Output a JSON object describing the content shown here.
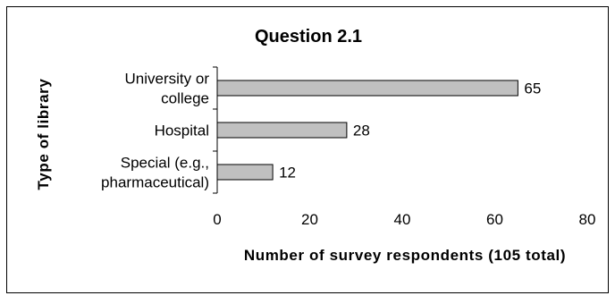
{
  "chart_data": {
    "type": "bar",
    "orientation": "horizontal",
    "title": "Question 2.1",
    "xlabel": "Number of survey respondents (105 total)",
    "ylabel": "Type of library",
    "categories": [
      "University or college",
      "Hospital",
      "Special (e.g., pharmaceutical)"
    ],
    "category_lines": [
      [
        "University or",
        "college"
      ],
      [
        "Hospital"
      ],
      [
        "Special (e.g.,",
        "pharmaceutical)"
      ]
    ],
    "values": [
      65,
      28,
      12
    ],
    "data_labels": [
      "65",
      "28",
      "12"
    ],
    "xlim": [
      0,
      80
    ],
    "x_ticks": [
      0,
      20,
      40,
      60,
      80
    ],
    "x_tick_labels": [
      "0",
      "20",
      "40",
      "60",
      "80"
    ],
    "grid": false,
    "legend": "none",
    "bar_color": "#c0c0c0",
    "bar_edge_color": "#000000"
  }
}
